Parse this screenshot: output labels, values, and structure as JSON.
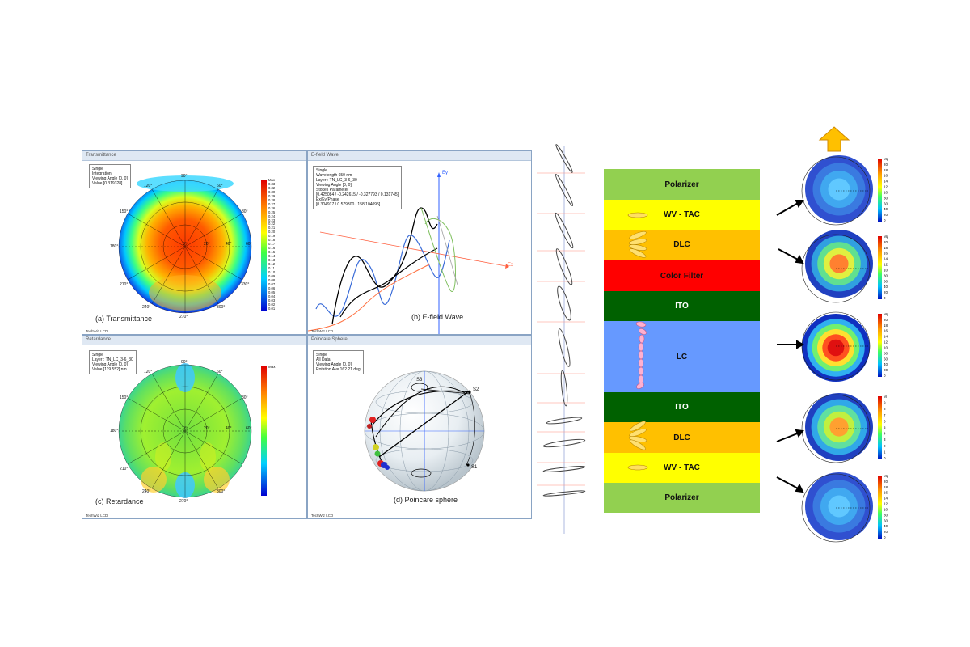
{
  "panels": {
    "transmittance": {
      "title": "Transmittance",
      "caption": "(a) Transmittance",
      "footer": "TechWiz LCD",
      "info": [
        "Single",
        "Integration",
        "Viewing Angle [0, 0]",
        "Value [0.319328]"
      ],
      "angles": [
        "90°",
        "60°",
        "30°",
        "0°",
        "330°",
        "300°",
        "270°",
        "240°",
        "210°",
        "180°",
        "150°",
        "120°"
      ],
      "radial": [
        "0°",
        "20°",
        "40°",
        "60°"
      ],
      "colorbar": [
        "Max",
        "0.33",
        "0.32",
        "0.30",
        "0.29",
        "0.28",
        "0.27",
        "0.26",
        "0.25",
        "0.24",
        "0.23",
        "0.22",
        "0.21",
        "0.20",
        "0.19",
        "0.18",
        "0.17",
        "0.16",
        "0.15",
        "0.14",
        "0.13",
        "0.12",
        "0.11",
        "0.10",
        "0.09",
        "0.08",
        "0.07",
        "0.06",
        "0.05",
        "0.04",
        "0.03",
        "0.02",
        "0.01"
      ]
    },
    "efield": {
      "title": "E-field Wave",
      "caption": "(b) E-field Wave",
      "footer": "TechWiz LCD",
      "info": [
        "Single",
        "Wavelength 650 nm",
        "Layer : TN_LC_3-6_30",
        "Viewing Angle [0, 0]",
        "Stokes Parameter",
        "[0.425084 / -0.242615 / -0.327793 / 0.131745]",
        "Ex/Ey/Phase",
        "[0.304917 / 0.579300 / 158.104095]"
      ],
      "axis_ey": "Ey",
      "axis_ex": "Ex"
    },
    "retardance": {
      "title": "Retardance",
      "caption": "(c) Retardance",
      "footer": "TechWiz LCD",
      "info": [
        "Single",
        "Layer : TN_LC_3-6_30",
        "Viewing Angle [0, 0]",
        "Value [119.552] nm"
      ],
      "angles": [
        "90°",
        "60°",
        "30°",
        "0°",
        "330°",
        "300°",
        "270°",
        "240°",
        "210°",
        "180°",
        "150°",
        "120°"
      ],
      "radial": [
        "0°",
        "20°",
        "40°",
        "60°"
      ],
      "colorbar_top": "Max"
    },
    "poincare": {
      "title": "Poincare Sphere",
      "caption": "(d) Poincare sphere",
      "footer": "TechWiz LCD",
      "info": [
        "Single",
        "All Data",
        "Viewing Angle [0, 0]",
        "Rotation Ave 162.21 deg"
      ],
      "axes": [
        "S3",
        "S2",
        "S1"
      ]
    }
  },
  "stack": {
    "layers": [
      {
        "label": "Polarizer",
        "color": "#92d050"
      },
      {
        "label": "WV - TAC",
        "color": "#ffff00"
      },
      {
        "label": "DLC",
        "color": "#ffc000"
      },
      {
        "label": "Color Filter",
        "color": "#ff0000"
      },
      {
        "label": "ITO",
        "color": "#006100"
      },
      {
        "label": "LC",
        "color": "#6699ff"
      },
      {
        "label": "ITO",
        "color": "#006100"
      },
      {
        "label": "DLC",
        "color": "#ffc000"
      },
      {
        "label": "WV - TAC",
        "color": "#ffff00"
      },
      {
        "label": "Polarizer",
        "color": "#92d050"
      }
    ]
  },
  "mini_colorbar": [
    "Mg",
    "20",
    "18",
    "16",
    "14",
    "12",
    "10",
    "80",
    "60",
    "40",
    "20",
    "0"
  ],
  "mini_colorbar_alt": [
    "M",
    "9",
    "8",
    "7",
    "6",
    "5",
    "4",
    "3",
    "2",
    "1",
    "0"
  ]
}
